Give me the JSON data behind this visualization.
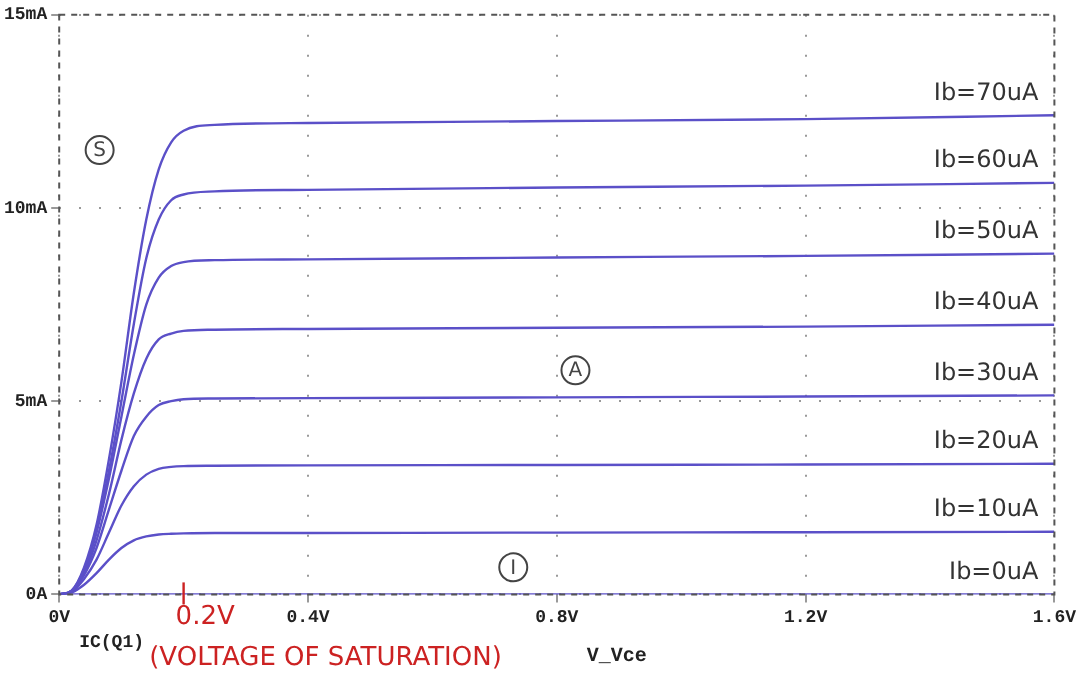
{
  "chart_data": {
    "type": "line",
    "xlabel": "V_Vce",
    "x": [
      0,
      0.02,
      0.04,
      0.06,
      0.08,
      0.1,
      0.12,
      0.14,
      0.16,
      0.18,
      0.2,
      0.25,
      0.4,
      0.8,
      1.2,
      1.6
    ],
    "series": [
      {
        "name": "Ib=70uA",
        "color": "#5b50c8",
        "values": [
          0,
          0.1,
          0.7,
          1.8,
          3.5,
          5.5,
          7.8,
          9.7,
          11.0,
          11.7,
          12.0,
          12.15,
          12.2,
          12.25,
          12.3,
          12.4
        ]
      },
      {
        "name": "Ib=60uA",
        "color": "#5b50c8",
        "values": [
          0,
          0.1,
          0.65,
          1.7,
          3.2,
          5.0,
          7.0,
          8.7,
          9.7,
          10.2,
          10.35,
          10.43,
          10.47,
          10.53,
          10.58,
          10.65
        ]
      },
      {
        "name": "Ib=50uA",
        "color": "#5b50c8",
        "values": [
          0,
          0.09,
          0.6,
          1.6,
          3.0,
          4.6,
          6.2,
          7.5,
          8.2,
          8.5,
          8.6,
          8.65,
          8.67,
          8.72,
          8.76,
          8.82
        ]
      },
      {
        "name": "Ib=40uA",
        "color": "#5b50c8",
        "values": [
          0,
          0.09,
          0.55,
          1.4,
          2.6,
          4.0,
          5.2,
          6.1,
          6.6,
          6.75,
          6.82,
          6.85,
          6.87,
          6.9,
          6.93,
          6.98
        ]
      },
      {
        "name": "Ib=30uA",
        "color": "#5b50c8",
        "values": [
          0,
          0.08,
          0.5,
          1.2,
          2.2,
          3.2,
          4.1,
          4.6,
          4.9,
          5.0,
          5.05,
          5.07,
          5.08,
          5.1,
          5.12,
          5.15
        ]
      },
      {
        "name": "Ib=20uA",
        "color": "#5b50c8",
        "values": [
          0,
          0.07,
          0.4,
          0.9,
          1.6,
          2.3,
          2.8,
          3.1,
          3.25,
          3.3,
          3.32,
          3.33,
          3.34,
          3.35,
          3.36,
          3.38
        ]
      },
      {
        "name": "Ib=10uA",
        "color": "#5b50c8",
        "values": [
          0,
          0.05,
          0.25,
          0.55,
          0.9,
          1.2,
          1.4,
          1.5,
          1.55,
          1.57,
          1.58,
          1.59,
          1.59,
          1.6,
          1.61,
          1.62
        ]
      },
      {
        "name": "Ib=0uA",
        "color": "#5b50c8",
        "values": [
          0,
          0,
          0,
          0,
          0,
          0,
          0,
          0,
          0,
          0,
          0,
          0,
          0,
          0,
          0,
          0
        ]
      }
    ],
    "xlim": [
      0,
      1.6
    ],
    "xticks": [
      {
        "value": 0,
        "label": "0V"
      },
      {
        "value": 0.4,
        "label": "0.4V"
      },
      {
        "value": 0.8,
        "label": "0.8V"
      },
      {
        "value": 1.2,
        "label": "1.2V"
      },
      {
        "value": 1.6,
        "label": "1.6V"
      }
    ],
    "ylim": [
      0,
      15
    ],
    "yticks": [
      {
        "value": 0,
        "label": "0A"
      },
      {
        "value": 5,
        "label": "5mA"
      },
      {
        "value": 10,
        "label": "10mA"
      },
      {
        "value": 15,
        "label": "15mA"
      }
    ],
    "grid": true,
    "legend": false,
    "marker": "none",
    "line_style": "solid",
    "annotations": [
      {
        "text": "S",
        "x": 0.065,
        "y": 11.5
      },
      {
        "text": "A",
        "x": 0.83,
        "y": 5.8
      },
      {
        "text": "I",
        "x": 0.73,
        "y": 0.7
      },
      {
        "text": "0.2V",
        "x": 0.2,
        "y": 0
      },
      "(VOLTAGE OF SATURATION)",
      "IC(Q1)"
    ]
  }
}
